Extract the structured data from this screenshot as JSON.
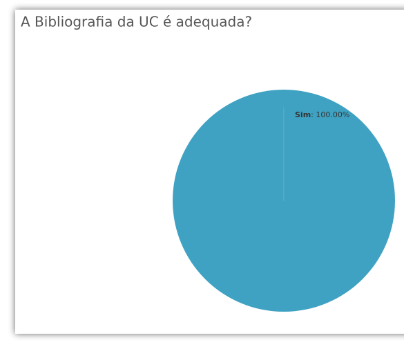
{
  "chart_data": {
    "type": "pie",
    "title": "A Bibliografia da UC é adequada?",
    "categories": [
      "Sim"
    ],
    "values": [
      100
    ],
    "value_labels": [
      "100.00%"
    ],
    "colors": [
      "#3fa2c2"
    ]
  }
}
